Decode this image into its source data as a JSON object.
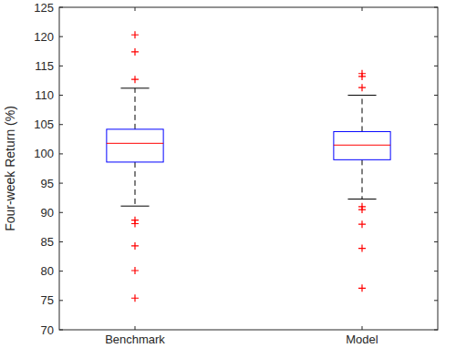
{
  "chart_data": {
    "type": "box",
    "y_label": "Four-week Return (%)",
    "categories": [
      "Benchmark",
      "Model"
    ],
    "boxes": [
      {
        "min": 91.1,
        "q1": 98.6,
        "median": 101.8,
        "q3": 104.2,
        "max": 111.2,
        "outliers": [
          120.3,
          117.4,
          112.7,
          88.7,
          88.1,
          84.3,
          80.1,
          75.4
        ]
      },
      {
        "min": 92.3,
        "q1": 99.0,
        "median": 101.5,
        "q3": 103.8,
        "max": 110.0,
        "outliers": [
          113.7,
          113.2,
          111.3,
          91.0,
          90.5,
          88.0,
          83.9,
          77.1
        ]
      }
    ],
    "color": "#0000ff",
    "marker": "plus",
    "ylim": [
      70,
      125
    ],
    "yticks": [
      70,
      75,
      80,
      85,
      90,
      95,
      100,
      105,
      110,
      115,
      120,
      125
    ],
    "grid": false
  }
}
